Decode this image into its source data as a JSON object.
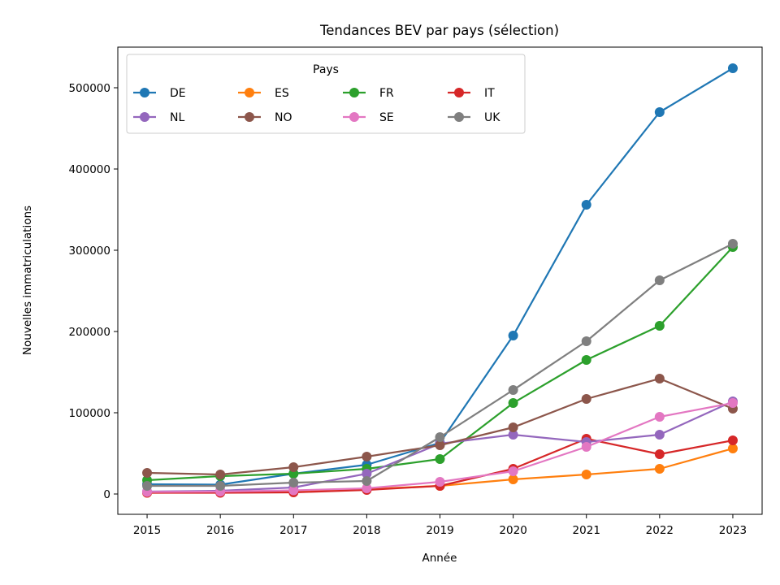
{
  "chart_data": {
    "type": "line",
    "title": "Tendances BEV par pays (sélection)",
    "xlabel": "Année",
    "ylabel": "Nouvelles immatriculations",
    "x": [
      2015,
      2016,
      2017,
      2018,
      2019,
      2020,
      2021,
      2022,
      2023
    ],
    "xlim": [
      2014.6,
      2023.4
    ],
    "ylim": [
      -25000,
      550000
    ],
    "yticks": [
      0,
      100000,
      200000,
      300000,
      400000,
      500000
    ],
    "grid": false,
    "legend": {
      "title": "Pays",
      "placement": "top-left",
      "columns": 4
    },
    "series": [
      {
        "name": "DE",
        "color": "#1f77b4",
        "values": [
          12000,
          11500,
          25000,
          36000,
          63000,
          195000,
          356000,
          470000,
          524000
        ]
      },
      {
        "name": "ES",
        "color": "#ff7f0e",
        "values": [
          1500,
          2000,
          4000,
          6000,
          10000,
          18000,
          24000,
          31000,
          56000
        ]
      },
      {
        "name": "FR",
        "color": "#2ca02c",
        "values": [
          17000,
          22000,
          25000,
          31000,
          43000,
          112000,
          165000,
          207000,
          304000
        ]
      },
      {
        "name": "IT",
        "color": "#d62728",
        "values": [
          1500,
          1500,
          2000,
          5000,
          10000,
          31000,
          68000,
          49000,
          66000
        ]
      },
      {
        "name": "NL",
        "color": "#9467bd",
        "values": [
          3000,
          4000,
          8000,
          25000,
          62000,
          73000,
          64000,
          73000,
          114000
        ]
      },
      {
        "name": "NO",
        "color": "#8c564b",
        "values": [
          26000,
          24000,
          33000,
          46000,
          60000,
          82000,
          117000,
          142000,
          105000
        ]
      },
      {
        "name": "SE",
        "color": "#e377c2",
        "values": [
          2500,
          3000,
          4500,
          7000,
          15000,
          28000,
          58000,
          95000,
          112000
        ]
      },
      {
        "name": "UK",
        "color": "#7f7f7f",
        "values": [
          10000,
          10000,
          14000,
          16000,
          70000,
          128000,
          188000,
          263000,
          308000
        ]
      }
    ]
  }
}
